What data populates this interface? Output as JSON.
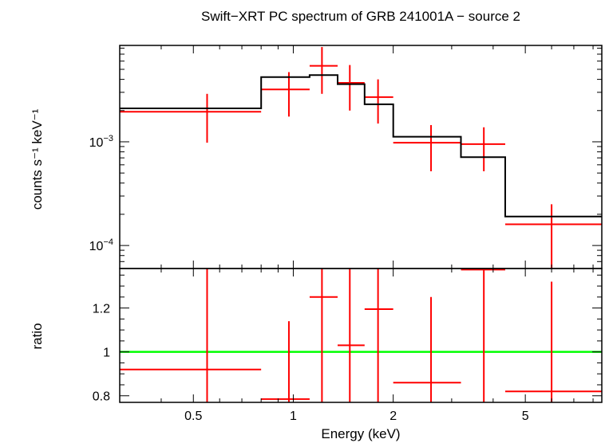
{
  "chart_data": {
    "type": "scatter",
    "title": "Swift−XRT PC spectrum of GRB 241001A − source 2",
    "xlabel": "Energy (keV)",
    "x_scale": "log",
    "xlim": [
      0.3,
      8.5
    ],
    "x_ticks": [
      {
        "value": 0.5,
        "label": "0.5"
      },
      {
        "value": 1,
        "label": "1"
      },
      {
        "value": 2,
        "label": "2"
      },
      {
        "value": 5,
        "label": "5"
      }
    ],
    "colors": {
      "data": "#ff0000",
      "model": "#000000",
      "unity": "#00ff00"
    },
    "panels": [
      {
        "name": "spectrum",
        "ylabel": "counts s⁻¹ keV⁻¹",
        "y_scale": "log",
        "ylim": [
          6e-05,
          0.0085
        ],
        "y_ticks": [
          {
            "value": 0.0001,
            "base": "10",
            "exp": "−4"
          },
          {
            "value": 0.001,
            "base": "10",
            "exp": "−3"
          }
        ],
        "data": [
          {
            "x": 0.55,
            "xlo": 0.3,
            "xhi": 0.8,
            "y": 0.00195,
            "ylo": 0.00098,
            "yhi": 0.0029
          },
          {
            "x": 0.97,
            "xlo": 0.8,
            "xhi": 1.12,
            "y": 0.0032,
            "ylo": 0.00175,
            "yhi": 0.0047
          },
          {
            "x": 1.22,
            "xlo": 1.12,
            "xhi": 1.36,
            "y": 0.0054,
            "ylo": 0.0029,
            "yhi": 0.0082
          },
          {
            "x": 1.48,
            "xlo": 1.36,
            "xhi": 1.64,
            "y": 0.0037,
            "ylo": 0.002,
            "yhi": 0.0055
          },
          {
            "x": 1.8,
            "xlo": 1.64,
            "xhi": 2.0,
            "y": 0.0027,
            "ylo": 0.0015,
            "yhi": 0.004
          },
          {
            "x": 2.6,
            "xlo": 2.0,
            "xhi": 3.2,
            "y": 0.00098,
            "ylo": 0.00052,
            "yhi": 0.00145
          },
          {
            "x": 3.75,
            "xlo": 3.2,
            "xhi": 4.35,
            "y": 0.00095,
            "ylo": 0.00052,
            "yhi": 0.00138
          },
          {
            "x": 6.0,
            "xlo": 4.35,
            "xhi": 8.5,
            "y": 0.00016,
            "ylo": 6e-05,
            "yhi": 0.00025
          }
        ],
        "model": [
          {
            "xlo": 0.3,
            "xhi": 0.8,
            "y": 0.0021
          },
          {
            "xlo": 0.8,
            "xhi": 1.12,
            "y": 0.0042
          },
          {
            "xlo": 1.12,
            "xhi": 1.36,
            "y": 0.0044
          },
          {
            "xlo": 1.36,
            "xhi": 1.64,
            "y": 0.0036
          },
          {
            "xlo": 1.64,
            "xhi": 2.0,
            "y": 0.0023
          },
          {
            "xlo": 2.0,
            "xhi": 3.2,
            "y": 0.00112
          },
          {
            "xlo": 3.2,
            "xhi": 4.35,
            "y": 0.00071
          },
          {
            "xlo": 4.35,
            "xhi": 8.5,
            "y": 0.00019
          }
        ]
      },
      {
        "name": "ratio",
        "ylabel": "ratio",
        "y_scale": "linear",
        "ylim": [
          0.77,
          1.38
        ],
        "y_ticks": [
          {
            "value": 0.8,
            "label": "0.8"
          },
          {
            "value": 1,
            "label": "1"
          },
          {
            "value": 1.2,
            "label": "1.2"
          }
        ],
        "reference_line": 1.0,
        "data": [
          {
            "x": 0.55,
            "xlo": 0.3,
            "xhi": 0.8,
            "y": 0.92,
            "ylo": 0.77,
            "yhi": 1.38
          },
          {
            "x": 0.97,
            "xlo": 0.8,
            "xhi": 1.12,
            "y": 0.785,
            "ylo": 0.77,
            "yhi": 1.14
          },
          {
            "x": 1.22,
            "xlo": 1.12,
            "xhi": 1.36,
            "y": 1.25,
            "ylo": 0.77,
            "yhi": 1.38
          },
          {
            "x": 1.48,
            "xlo": 1.36,
            "xhi": 1.64,
            "y": 1.03,
            "ylo": 0.77,
            "yhi": 1.38
          },
          {
            "x": 1.8,
            "xlo": 1.64,
            "xhi": 2.0,
            "y": 1.195,
            "ylo": 0.77,
            "yhi": 1.38
          },
          {
            "x": 2.6,
            "xlo": 2.0,
            "xhi": 3.2,
            "y": 0.86,
            "ylo": 0.77,
            "yhi": 1.25
          },
          {
            "x": 3.75,
            "xlo": 3.2,
            "xhi": 4.35,
            "y": 1.375,
            "ylo": 0.77,
            "yhi": 1.38
          },
          {
            "x": 6.0,
            "xlo": 4.35,
            "xhi": 8.5,
            "y": 0.82,
            "ylo": 0.77,
            "yhi": 1.32
          }
        ]
      }
    ]
  }
}
